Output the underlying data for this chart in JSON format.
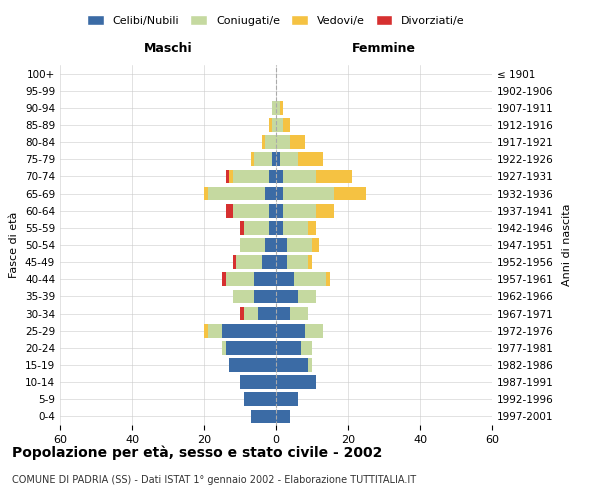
{
  "age_groups": [
    "0-4",
    "5-9",
    "10-14",
    "15-19",
    "20-24",
    "25-29",
    "30-34",
    "35-39",
    "40-44",
    "45-49",
    "50-54",
    "55-59",
    "60-64",
    "65-69",
    "70-74",
    "75-79",
    "80-84",
    "85-89",
    "90-94",
    "95-99",
    "100+"
  ],
  "birth_years": [
    "1997-2001",
    "1992-1996",
    "1987-1991",
    "1982-1986",
    "1977-1981",
    "1972-1976",
    "1967-1971",
    "1962-1966",
    "1957-1961",
    "1952-1956",
    "1947-1951",
    "1942-1946",
    "1937-1941",
    "1932-1936",
    "1927-1931",
    "1922-1926",
    "1917-1921",
    "1912-1916",
    "1907-1911",
    "1902-1906",
    "≤ 1901"
  ],
  "maschi": {
    "celibi": [
      7,
      9,
      10,
      13,
      14,
      15,
      5,
      6,
      6,
      4,
      3,
      2,
      2,
      3,
      2,
      1,
      0,
      0,
      0,
      0,
      0
    ],
    "coniugati": [
      0,
      0,
      0,
      0,
      1,
      4,
      4,
      6,
      8,
      7,
      7,
      7,
      10,
      16,
      10,
      5,
      3,
      1,
      1,
      0,
      0
    ],
    "vedovi": [
      0,
      0,
      0,
      0,
      0,
      1,
      0,
      0,
      0,
      0,
      0,
      0,
      0,
      1,
      1,
      1,
      1,
      1,
      0,
      0,
      0
    ],
    "divorziati": [
      0,
      0,
      0,
      0,
      0,
      0,
      1,
      0,
      1,
      1,
      0,
      1,
      2,
      0,
      1,
      0,
      0,
      0,
      0,
      0,
      0
    ]
  },
  "femmine": {
    "nubili": [
      4,
      6,
      11,
      9,
      7,
      8,
      4,
      6,
      5,
      3,
      3,
      2,
      2,
      2,
      2,
      1,
      0,
      0,
      0,
      0,
      0
    ],
    "coniugate": [
      0,
      0,
      0,
      1,
      3,
      5,
      5,
      5,
      9,
      6,
      7,
      7,
      9,
      14,
      9,
      5,
      4,
      2,
      1,
      0,
      0
    ],
    "vedove": [
      0,
      0,
      0,
      0,
      0,
      0,
      0,
      0,
      1,
      1,
      2,
      2,
      5,
      9,
      10,
      7,
      4,
      2,
      1,
      0,
      0
    ],
    "divorziate": [
      0,
      0,
      0,
      0,
      0,
      0,
      0,
      0,
      0,
      0,
      0,
      0,
      0,
      0,
      0,
      0,
      0,
      0,
      0,
      0,
      0
    ]
  },
  "colors": {
    "celibi": "#3b6ba5",
    "coniugati": "#c5d9a0",
    "vedovi": "#f5c242",
    "divorziati": "#d63030"
  },
  "xlim": 60,
  "title": "Popolazione per età, sesso e stato civile - 2002",
  "subtitle": "COMUNE DI PADRIA (SS) - Dati ISTAT 1° gennaio 2002 - Elaborazione TUTTITALIA.IT",
  "ylabel_left": "Fasce di età",
  "ylabel_right": "Anni di nascita",
  "xlabel_maschi": "Maschi",
  "xlabel_femmine": "Femmine",
  "bg_color": "#ffffff",
  "grid_color": "#cccccc"
}
